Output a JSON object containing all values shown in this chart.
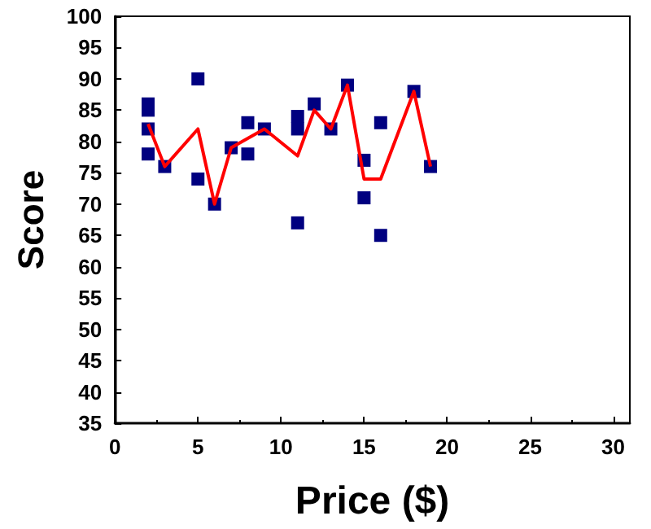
{
  "chart_data": {
    "type": "scatter",
    "xlabel": "Price ($)",
    "ylabel": "Score",
    "xlim": [
      0,
      31
    ],
    "xticks": [
      0,
      5,
      10,
      15,
      20,
      25,
      30
    ],
    "ylim": [
      35,
      100
    ],
    "yticks": [
      35,
      40,
      45,
      50,
      55,
      60,
      65,
      70,
      75,
      80,
      85,
      90,
      95,
      100
    ],
    "grid": false,
    "series": [
      {
        "color": "#000080",
        "marker": "square",
        "x": [
          2,
          2,
          2,
          2,
          3,
          5,
          5,
          6,
          7,
          8,
          8,
          9,
          11,
          11,
          11,
          12,
          13,
          14,
          15,
          15,
          16,
          16,
          18,
          19
        ],
        "values": [
          86,
          85,
          82,
          78,
          76,
          90,
          74,
          70,
          79,
          83,
          78,
          82,
          84,
          82,
          67,
          86,
          82,
          89,
          77,
          71,
          83,
          65,
          88,
          76
        ]
      },
      {
        "type": "line",
        "color": "#ff0000",
        "marker": "none",
        "x": [
          2,
          3,
          5,
          6,
          7,
          8,
          9,
          11,
          12,
          13,
          14,
          15,
          16,
          18,
          19
        ],
        "values": [
          82.8,
          76,
          82,
          70,
          79,
          80.5,
          82,
          77.7,
          85,
          82,
          89,
          74,
          74,
          88,
          76
        ]
      }
    ]
  }
}
